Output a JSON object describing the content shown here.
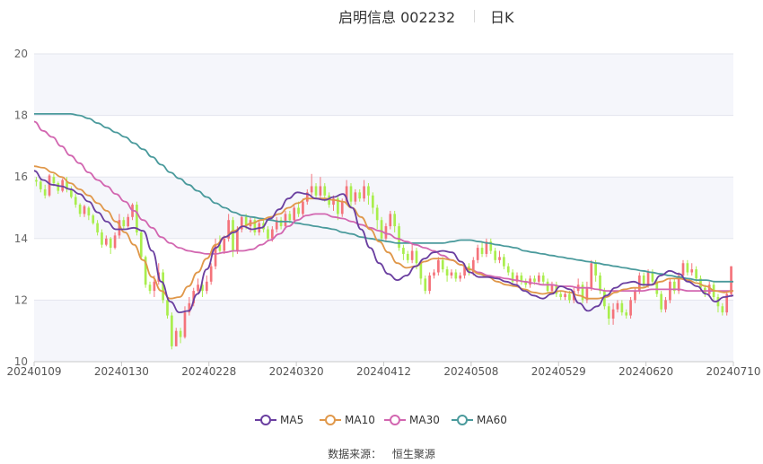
{
  "header": {
    "stock": "启明信息 002232",
    "period": "日K"
  },
  "chart_data": {
    "type": "candlestick",
    "ylim": [
      10,
      20
    ],
    "yticks": [
      "10",
      "12",
      "14",
      "16",
      "18",
      "20"
    ],
    "xticks": [
      "20240109",
      "20240130",
      "20240228",
      "20240320",
      "20240412",
      "20240508",
      "20240529",
      "20240620",
      "20240710"
    ],
    "colors": {
      "up": "#f4737b",
      "down": "#a9ee4d",
      "ma5": "#6a3fa0",
      "ma10": "#e0984a",
      "ma30": "#d266b0",
      "ma60": "#4a9a9c"
    },
    "candles": [
      [
        15.9,
        15.85,
        16.0,
        15.7
      ],
      [
        15.85,
        15.6,
        15.95,
        15.5
      ],
      [
        15.6,
        15.4,
        15.75,
        15.3
      ],
      [
        15.4,
        16.05,
        16.1,
        15.35
      ],
      [
        16.0,
        15.8,
        16.1,
        15.7
      ],
      [
        15.8,
        15.55,
        15.85,
        15.45
      ],
      [
        15.55,
        15.9,
        15.95,
        15.5
      ],
      [
        15.85,
        15.6,
        16.0,
        15.5
      ],
      [
        15.6,
        15.35,
        15.7,
        15.3
      ],
      [
        15.35,
        15.1,
        15.45,
        15.0
      ],
      [
        15.1,
        14.8,
        15.15,
        14.7
      ],
      [
        14.8,
        15.05,
        15.1,
        14.7
      ],
      [
        15.0,
        14.75,
        15.05,
        14.6
      ],
      [
        14.75,
        14.5,
        14.8,
        14.45
      ],
      [
        14.5,
        14.2,
        14.6,
        14.1
      ],
      [
        14.2,
        13.8,
        14.3,
        13.7
      ],
      [
        13.8,
        14.0,
        14.1,
        13.75
      ],
      [
        14.0,
        13.7,
        14.05,
        13.5
      ],
      [
        13.7,
        14.1,
        14.2,
        13.65
      ],
      [
        14.1,
        14.6,
        14.8,
        14.0
      ],
      [
        14.6,
        14.4,
        14.7,
        14.3
      ],
      [
        14.4,
        14.7,
        14.8,
        14.35
      ],
      [
        14.7,
        15.1,
        15.15,
        14.6
      ],
      [
        15.1,
        14.2,
        15.2,
        14.1
      ],
      [
        14.2,
        13.4,
        14.25,
        13.3
      ],
      [
        13.4,
        12.5,
        13.45,
        12.4
      ],
      [
        12.5,
        12.3,
        12.6,
        12.2
      ],
      [
        12.3,
        12.6,
        12.8,
        12.1
      ],
      [
        12.6,
        12.9,
        13.2,
        12.5
      ],
      [
        12.9,
        12.0,
        13.0,
        11.9
      ],
      [
        12.0,
        11.5,
        12.1,
        11.4
      ],
      [
        11.5,
        10.5,
        11.6,
        10.4
      ],
      [
        10.5,
        11.0,
        11.1,
        10.5
      ],
      [
        11.0,
        10.8,
        11.1,
        10.6
      ],
      [
        10.8,
        11.6,
        11.8,
        10.75
      ],
      [
        11.6,
        11.9,
        12.1,
        11.5
      ],
      [
        11.9,
        12.3,
        12.4,
        11.8
      ],
      [
        12.3,
        12.5,
        12.7,
        12.2
      ],
      [
        12.5,
        12.3,
        12.6,
        12.1
      ],
      [
        12.3,
        12.6,
        12.8,
        12.2
      ],
      [
        12.6,
        13.1,
        13.2,
        12.5
      ],
      [
        13.1,
        13.8,
        14.0,
        13.0
      ],
      [
        13.8,
        13.6,
        14.1,
        13.5
      ],
      [
        13.6,
        14.0,
        14.1,
        13.5
      ],
      [
        14.0,
        14.6,
        14.8,
        13.9
      ],
      [
        14.6,
        13.6,
        14.7,
        13.4
      ],
      [
        13.6,
        14.3,
        14.4,
        13.5
      ],
      [
        14.3,
        14.7,
        14.75,
        14.2
      ],
      [
        14.7,
        14.4,
        14.8,
        14.3
      ],
      [
        14.4,
        14.6,
        14.7,
        14.2
      ],
      [
        14.6,
        14.2,
        14.7,
        14.1
      ],
      [
        14.2,
        14.5,
        14.6,
        14.1
      ],
      [
        14.5,
        14.3,
        14.6,
        14.2
      ],
      [
        14.3,
        14.0,
        14.4,
        13.9
      ],
      [
        14.0,
        14.3,
        14.4,
        13.9
      ],
      [
        14.3,
        14.6,
        14.7,
        14.2
      ],
      [
        14.6,
        14.4,
        14.7,
        14.3
      ],
      [
        14.4,
        14.8,
        14.9,
        14.3
      ],
      [
        14.8,
        14.6,
        14.9,
        14.5
      ],
      [
        14.6,
        15.0,
        15.1,
        14.5
      ],
      [
        15.0,
        14.8,
        15.2,
        14.7
      ],
      [
        14.8,
        15.2,
        15.3,
        14.7
      ],
      [
        15.2,
        15.5,
        15.6,
        15.1
      ],
      [
        15.5,
        15.7,
        16.1,
        15.4
      ],
      [
        15.7,
        15.4,
        15.8,
        15.3
      ],
      [
        15.4,
        15.7,
        16.0,
        15.3
      ],
      [
        15.7,
        15.4,
        15.8,
        15.2
      ],
      [
        15.4,
        15.1,
        15.5,
        15.0
      ],
      [
        15.1,
        15.3,
        15.4,
        14.9
      ],
      [
        15.3,
        14.8,
        15.4,
        14.6
      ],
      [
        14.8,
        15.2,
        15.3,
        14.7
      ],
      [
        15.2,
        15.7,
        15.9,
        15.1
      ],
      [
        15.7,
        15.2,
        15.8,
        15.0
      ],
      [
        15.2,
        15.5,
        15.6,
        15.1
      ],
      [
        15.5,
        15.3,
        15.6,
        15.2
      ],
      [
        15.3,
        15.7,
        15.9,
        15.2
      ],
      [
        15.7,
        15.4,
        15.8,
        15.1
      ],
      [
        15.4,
        15.0,
        15.5,
        14.8
      ],
      [
        15.0,
        14.6,
        15.1,
        14.3
      ],
      [
        14.6,
        14.0,
        14.7,
        13.9
      ],
      [
        14.0,
        14.4,
        14.5,
        13.9
      ],
      [
        14.4,
        14.8,
        14.9,
        14.3
      ],
      [
        14.8,
        14.4,
        14.9,
        14.2
      ],
      [
        14.4,
        13.7,
        14.5,
        13.6
      ],
      [
        13.7,
        13.5,
        13.8,
        13.3
      ],
      [
        13.5,
        13.3,
        13.6,
        13.2
      ],
      [
        13.3,
        13.6,
        13.8,
        13.2
      ],
      [
        13.6,
        13.2,
        13.7,
        13.0
      ],
      [
        13.2,
        12.7,
        13.3,
        12.5
      ],
      [
        12.7,
        12.3,
        12.8,
        12.2
      ],
      [
        12.3,
        12.8,
        12.9,
        12.2
      ],
      [
        12.8,
        12.9,
        13.0,
        12.7
      ],
      [
        12.9,
        13.3,
        13.4,
        12.8
      ],
      [
        13.3,
        13.0,
        13.4,
        12.9
      ],
      [
        13.0,
        12.8,
        13.1,
        12.6
      ],
      [
        12.8,
        12.9,
        13.0,
        12.7
      ],
      [
        12.9,
        12.7,
        13.0,
        12.6
      ],
      [
        12.7,
        12.8,
        12.9,
        12.6
      ],
      [
        12.8,
        13.1,
        13.2,
        12.7
      ],
      [
        13.1,
        12.9,
        13.2,
        12.8
      ],
      [
        12.9,
        13.3,
        13.4,
        12.8
      ],
      [
        13.3,
        13.7,
        13.8,
        13.2
      ],
      [
        13.7,
        13.5,
        13.9,
        13.4
      ],
      [
        13.5,
        13.9,
        14.0,
        13.4
      ],
      [
        13.9,
        13.6,
        14.0,
        13.5
      ],
      [
        13.6,
        13.3,
        13.7,
        13.2
      ],
      [
        13.3,
        13.4,
        13.6,
        13.2
      ],
      [
        13.4,
        13.1,
        13.5,
        13.0
      ],
      [
        13.1,
        12.9,
        13.2,
        12.8
      ],
      [
        12.9,
        12.6,
        13.0,
        12.5
      ],
      [
        12.6,
        12.8,
        12.9,
        12.5
      ],
      [
        12.8,
        12.6,
        12.9,
        12.5
      ],
      [
        12.6,
        12.5,
        12.7,
        12.4
      ],
      [
        12.5,
        12.7,
        12.8,
        12.4
      ],
      [
        12.7,
        12.6,
        12.8,
        12.5
      ],
      [
        12.6,
        12.8,
        12.9,
        12.5
      ],
      [
        12.8,
        12.6,
        12.9,
        12.5
      ],
      [
        12.6,
        12.3,
        12.7,
        12.2
      ],
      [
        12.3,
        12.5,
        12.6,
        12.2
      ],
      [
        12.5,
        12.2,
        12.6,
        12.1
      ],
      [
        12.2,
        12.1,
        12.3,
        12.0
      ],
      [
        12.1,
        12.2,
        12.3,
        12.0
      ],
      [
        12.2,
        12.0,
        12.3,
        11.9
      ],
      [
        12.0,
        12.3,
        12.4,
        11.9
      ],
      [
        12.3,
        12.5,
        12.7,
        12.2
      ],
      [
        12.5,
        12.0,
        12.6,
        11.9
      ],
      [
        12.0,
        12.4,
        12.6,
        11.9
      ],
      [
        12.4,
        13.2,
        13.3,
        12.3
      ],
      [
        13.2,
        12.8,
        13.3,
        12.6
      ],
      [
        12.8,
        12.3,
        12.9,
        12.2
      ],
      [
        12.3,
        11.8,
        12.4,
        11.7
      ],
      [
        11.8,
        11.4,
        11.9,
        11.2
      ],
      [
        11.4,
        11.7,
        11.9,
        11.2
      ],
      [
        11.7,
        11.9,
        12.0,
        11.6
      ],
      [
        11.9,
        11.6,
        12.0,
        11.5
      ],
      [
        11.6,
        11.5,
        11.7,
        11.4
      ],
      [
        11.5,
        12.0,
        12.1,
        11.4
      ],
      [
        12.0,
        12.3,
        12.4,
        11.9
      ],
      [
        12.3,
        12.8,
        12.9,
        12.2
      ],
      [
        12.8,
        12.5,
        12.9,
        12.4
      ],
      [
        12.5,
        12.9,
        13.0,
        12.4
      ],
      [
        12.9,
        12.6,
        13.0,
        12.5
      ],
      [
        12.6,
        12.2,
        12.7,
        12.1
      ],
      [
        12.2,
        11.7,
        12.3,
        11.6
      ],
      [
        11.7,
        12.0,
        12.1,
        11.6
      ],
      [
        12.0,
        12.6,
        12.7,
        11.9
      ],
      [
        12.6,
        12.3,
        12.7,
        12.2
      ],
      [
        12.3,
        12.8,
        12.9,
        12.2
      ],
      [
        12.8,
        13.2,
        13.3,
        12.7
      ],
      [
        13.2,
        12.9,
        13.3,
        12.8
      ],
      [
        12.9,
        13.0,
        13.2,
        12.8
      ],
      [
        13.0,
        12.7,
        13.1,
        12.6
      ],
      [
        12.7,
        12.4,
        12.8,
        12.3
      ],
      [
        12.4,
        12.2,
        12.5,
        12.1
      ],
      [
        12.2,
        12.5,
        12.6,
        12.1
      ],
      [
        12.5,
        12.1,
        12.6,
        12.0
      ],
      [
        12.1,
        11.8,
        12.2,
        11.6
      ],
      [
        11.8,
        11.6,
        11.9,
        11.5
      ],
      [
        11.6,
        12.2,
        12.3,
        11.5
      ],
      [
        12.2,
        13.1,
        13.1,
        12.1
      ]
    ],
    "ma5": [
      16.2,
      15.9,
      15.75,
      15.7,
      15.6,
      15.45,
      15.2,
      14.85,
      14.55,
      14.3,
      14.3,
      14.35,
      14.25,
      13.6,
      12.6,
      11.95,
      11.6,
      11.65,
      12.2,
      13.0,
      13.7,
      14.05,
      14.2,
      14.4,
      14.3,
      14.35,
      14.65,
      14.95,
      15.3,
      15.5,
      15.45,
      15.3,
      15.25,
      15.35,
      15.45,
      15.0,
      14.3,
      13.7,
      13.2,
      12.85,
      12.65,
      12.8,
      13.1,
      13.35,
      13.55,
      13.6,
      13.55,
      13.25,
      12.9,
      12.75,
      12.75,
      12.7,
      12.6,
      12.5,
      12.3,
      12.15,
      12.05,
      12.2,
      12.45,
      12.35,
      11.9,
      11.65,
      11.8,
      12.15,
      12.4,
      12.55,
      12.6,
      12.5,
      12.5,
      12.8,
      12.95,
      12.85,
      12.6,
      12.45,
      12.2,
      11.95,
      12.1,
      12.15
    ],
    "ma10": [
      16.35,
      16.3,
      16.15,
      16.0,
      15.8,
      15.6,
      15.4,
      15.15,
      14.9,
      14.55,
      14.2,
      13.8,
      13.3,
      12.75,
      12.3,
      12.05,
      12.1,
      12.45,
      12.9,
      13.35,
      13.8,
      14.05,
      14.25,
      14.4,
      14.5,
      14.6,
      14.7,
      14.8,
      15.0,
      15.15,
      15.3,
      15.3,
      15.3,
      15.25,
      15.2,
      15.0,
      14.7,
      14.3,
      13.9,
      13.55,
      13.2,
      13.05,
      13.1,
      13.25,
      13.35,
      13.35,
      13.3,
      13.15,
      13.0,
      12.85,
      12.75,
      12.6,
      12.5,
      12.45,
      12.35,
      12.25,
      12.2,
      12.25,
      12.3,
      12.25,
      12.15,
      12.05,
      12.05,
      12.1,
      12.25,
      12.35,
      12.4,
      12.4,
      12.5,
      12.6,
      12.7,
      12.7,
      12.65,
      12.55,
      12.45,
      12.3,
      12.25,
      12.3
    ],
    "ma30": [
      17.8,
      17.5,
      17.3,
      17.0,
      16.7,
      16.45,
      16.15,
      15.9,
      15.7,
      15.45,
      15.2,
      14.9,
      14.6,
      14.35,
      14.05,
      13.85,
      13.7,
      13.6,
      13.55,
      13.5,
      13.5,
      13.55,
      13.6,
      13.6,
      13.65,
      13.8,
      13.95,
      14.15,
      14.4,
      14.6,
      14.75,
      14.8,
      14.8,
      14.7,
      14.65,
      14.55,
      14.45,
      14.35,
      14.25,
      14.15,
      14.0,
      13.9,
      13.8,
      13.7,
      13.6,
      13.45,
      13.3,
      13.15,
      13.0,
      12.9,
      12.8,
      12.75,
      12.7,
      12.65,
      12.6,
      12.55,
      12.5,
      12.5,
      12.45,
      12.45,
      12.4,
      12.4,
      12.35,
      12.3,
      12.3,
      12.3,
      12.3,
      12.3,
      12.35,
      12.35,
      12.35,
      12.35,
      12.3,
      12.3,
      12.3,
      12.3,
      12.3,
      12.3
    ],
    "ma60": [
      18.05,
      18.05,
      18.05,
      18.05,
      18.05,
      18.0,
      17.9,
      17.75,
      17.6,
      17.45,
      17.3,
      17.1,
      16.9,
      16.65,
      16.4,
      16.15,
      15.95,
      15.75,
      15.55,
      15.35,
      15.15,
      15.0,
      14.85,
      14.75,
      14.7,
      14.65,
      14.6,
      14.55,
      14.55,
      14.5,
      14.45,
      14.4,
      14.35,
      14.3,
      14.2,
      14.15,
      14.05,
      14.0,
      13.95,
      13.9,
      13.85,
      13.85,
      13.85,
      13.85,
      13.85,
      13.85,
      13.9,
      13.95,
      13.95,
      13.9,
      13.85,
      13.8,
      13.75,
      13.7,
      13.6,
      13.55,
      13.5,
      13.45,
      13.4,
      13.35,
      13.3,
      13.25,
      13.2,
      13.15,
      13.1,
      13.05,
      13.0,
      12.95,
      12.9,
      12.85,
      12.8,
      12.75,
      12.7,
      12.65,
      12.65,
      12.6,
      12.6,
      12.6
    ],
    "legend": [
      "MA5",
      "MA10",
      "MA30",
      "MA60"
    ]
  },
  "source": {
    "label": "数据来源：",
    "name": "恒生聚源"
  }
}
